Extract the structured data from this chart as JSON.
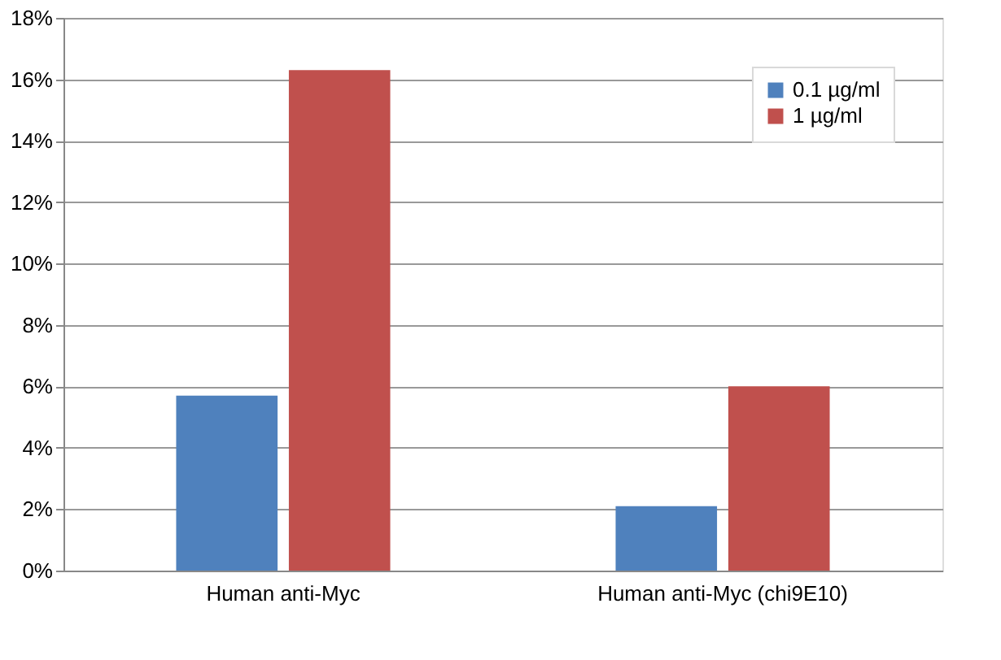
{
  "chart_data": {
    "type": "bar",
    "categories": [
      "Human anti-Myc",
      "Human anti-Myc (chi9E10)"
    ],
    "series": [
      {
        "name": "0.1 µg/ml",
        "color": "#4f81bd",
        "values": [
          5.7,
          2.1
        ]
      },
      {
        "name": "1 µg/ml",
        "color": "#c0504d",
        "values": [
          16.3,
          6.0
        ]
      }
    ],
    "ylim": [
      0,
      18
    ],
    "yticks": [
      {
        "value": 0,
        "label": "0%"
      },
      {
        "value": 2,
        "label": "2%"
      },
      {
        "value": 4,
        "label": "4%"
      },
      {
        "value": 6,
        "label": "6%"
      },
      {
        "value": 8,
        "label": "8%"
      },
      {
        "value": 10,
        "label": "10%"
      },
      {
        "value": 12,
        "label": "12%"
      },
      {
        "value": 14,
        "label": "14%"
      },
      {
        "value": 16,
        "label": "16%"
      },
      {
        "value": 18,
        "label": "18%"
      }
    ],
    "grid": "y",
    "legend": "top right"
  }
}
